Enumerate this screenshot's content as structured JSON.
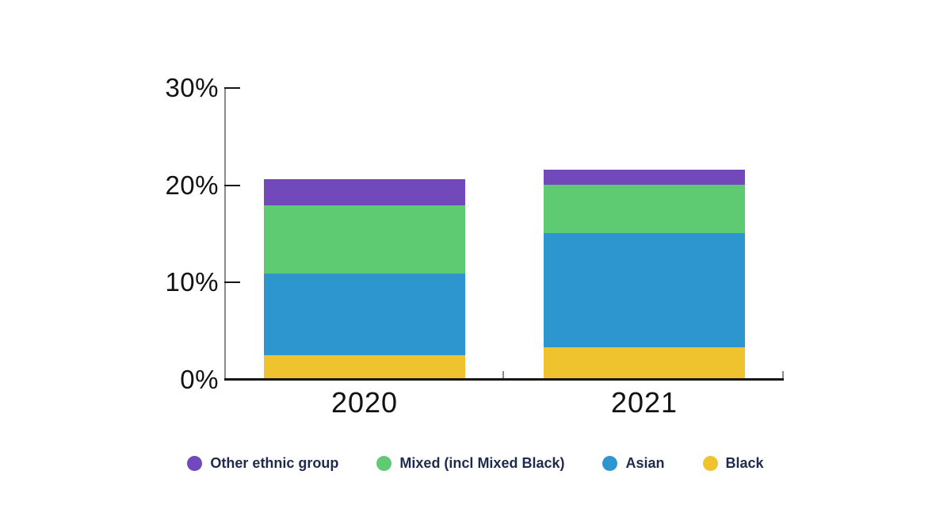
{
  "chart_data": {
    "type": "bar",
    "variant": "stacked",
    "title": "",
    "categories": [
      "2020",
      "2021"
    ],
    "series": [
      {
        "name": "Black",
        "color": "#efc32e",
        "values": [
          2.6,
          3.4
        ]
      },
      {
        "name": "Asian",
        "color": "#2e96ce",
        "values": [
          8.4,
          11.8
        ]
      },
      {
        "name": "Mixed (incl Mixed Black)",
        "color": "#5ecb73",
        "values": [
          7.0,
          4.9
        ]
      },
      {
        "name": "Other ethnic group",
        "color": "#7149bb",
        "values": [
          2.7,
          1.6
        ]
      }
    ],
    "ylim": [
      0,
      30
    ],
    "yticks": [
      {
        "value": 0,
        "label": "0%"
      },
      {
        "value": 10,
        "label": "10%"
      },
      {
        "value": 20,
        "label": "20%"
      },
      {
        "value": 30,
        "label": "30%"
      }
    ],
    "legend": {
      "position": "bottom",
      "order": [
        "Other ethnic group",
        "Mixed (incl Mixed Black)",
        "Asian",
        "Black"
      ]
    },
    "grid": false
  },
  "colors": {
    "background": "#ffffff",
    "y_axis_line": "#8a8a8a",
    "x_axis_line": "#161616",
    "y_tick": "#161616",
    "x_minor_tick": "#8a8a8a",
    "axis_text": "#121212",
    "legend_text": "#1e2b4d"
  }
}
